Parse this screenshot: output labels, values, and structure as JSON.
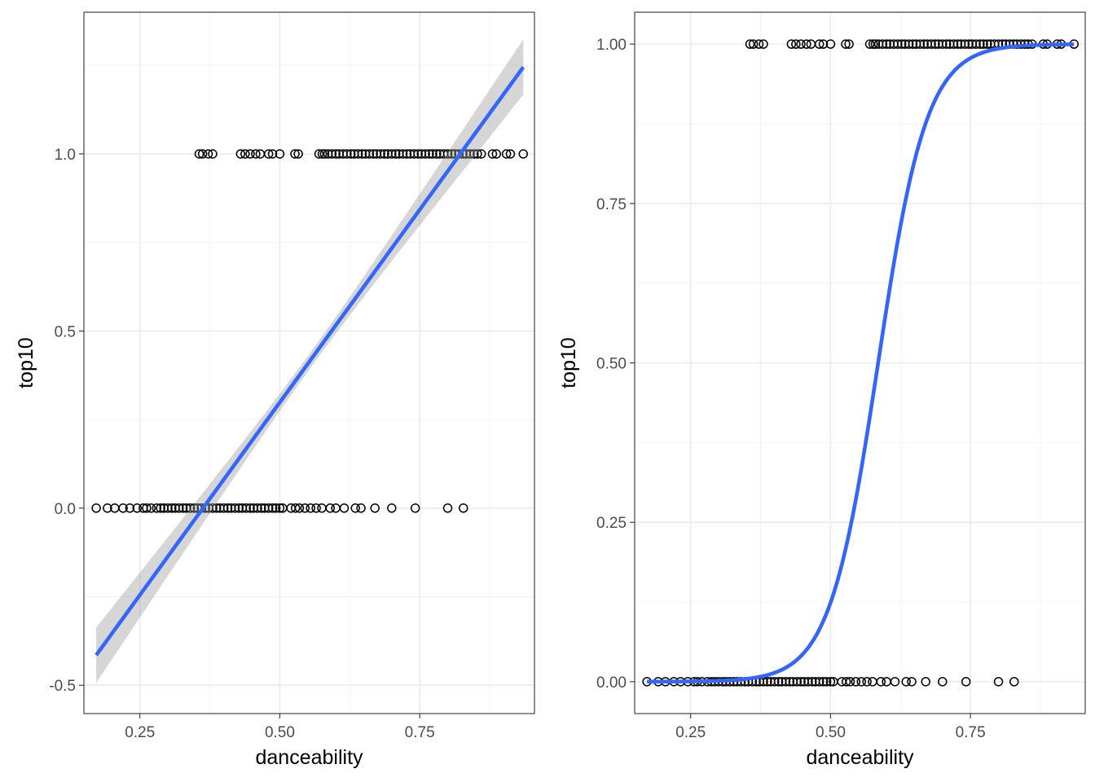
{
  "chart_data": [
    {
      "type": "scatter",
      "xlabel": "danceability",
      "ylabel": "top10",
      "xlim": [
        0.15,
        0.955
      ],
      "ylim": [
        -0.58,
        1.4
      ],
      "x_ticks": [
        0.25,
        0.5,
        0.75
      ],
      "x_tick_labels": [
        "0.25",
        "0.50",
        "0.75"
      ],
      "y_ticks": [
        -0.5,
        0.0,
        0.5,
        1.0
      ],
      "y_tick_labels": [
        "-0.5",
        "0.0",
        "0.5",
        "1.0"
      ],
      "grid": true,
      "colors": {
        "points": "#000000",
        "fit_line": "#3366ff",
        "confidence_band": "#999999"
      },
      "points": [
        {
          "y": 1,
          "x": [
            0.356,
            0.362,
            0.372,
            0.38,
            0.43,
            0.438,
            0.447,
            0.457,
            0.465,
            0.48,
            0.487,
            0.5,
            0.527,
            0.533,
            0.57,
            0.576,
            0.58,
            0.586,
            0.593,
            0.6,
            0.606,
            0.613,
            0.62,
            0.627,
            0.633,
            0.64,
            0.647,
            0.653,
            0.66,
            0.667,
            0.673,
            0.68,
            0.687,
            0.693,
            0.7,
            0.707,
            0.713,
            0.72,
            0.727,
            0.733,
            0.74,
            0.747,
            0.753,
            0.76,
            0.767,
            0.773,
            0.78,
            0.786,
            0.793,
            0.8,
            0.807,
            0.813,
            0.82,
            0.827,
            0.833,
            0.84,
            0.847,
            0.853,
            0.86,
            0.88,
            0.887,
            0.905,
            0.912,
            0.935
          ]
        },
        {
          "y": 0,
          "x": [
            0.172,
            0.192,
            0.205,
            0.22,
            0.232,
            0.245,
            0.256,
            0.262,
            0.27,
            0.28,
            0.287,
            0.293,
            0.3,
            0.307,
            0.313,
            0.32,
            0.327,
            0.333,
            0.34,
            0.347,
            0.353,
            0.36,
            0.367,
            0.373,
            0.38,
            0.387,
            0.393,
            0.4,
            0.407,
            0.413,
            0.42,
            0.427,
            0.433,
            0.44,
            0.447,
            0.453,
            0.46,
            0.467,
            0.473,
            0.48,
            0.487,
            0.493,
            0.5,
            0.505,
            0.52,
            0.528,
            0.535,
            0.545,
            0.555,
            0.565,
            0.575,
            0.59,
            0.6,
            0.615,
            0.635,
            0.645,
            0.67,
            0.7,
            0.742,
            0.8,
            0.828
          ]
        }
      ],
      "fit": {
        "method": "linear",
        "x_range": [
          0.172,
          0.935
        ],
        "y_range": [
          -0.415,
          1.245
        ],
        "ci_half_width_ends": 0.078,
        "ci_half_width_center": 0.022
      }
    },
    {
      "type": "scatter",
      "xlabel": "danceability",
      "ylabel": "top10",
      "xlim": [
        0.15,
        0.955
      ],
      "ylim": [
        -0.05,
        1.05
      ],
      "x_ticks": [
        0.25,
        0.5,
        0.75
      ],
      "x_tick_labels": [
        "0.25",
        "0.50",
        "0.75"
      ],
      "y_ticks": [
        0.0,
        0.25,
        0.5,
        0.75,
        1.0
      ],
      "y_tick_labels": [
        "0.00",
        "0.25",
        "0.50",
        "0.75",
        "1.00"
      ],
      "grid": true,
      "colors": {
        "points": "#000000",
        "fit_line": "#3366ff"
      },
      "points": [
        {
          "y": 1,
          "x": [
            0.356,
            0.362,
            0.372,
            0.38,
            0.43,
            0.438,
            0.447,
            0.457,
            0.465,
            0.48,
            0.487,
            0.5,
            0.527,
            0.533,
            0.57,
            0.576,
            0.58,
            0.586,
            0.593,
            0.6,
            0.606,
            0.613,
            0.62,
            0.627,
            0.633,
            0.64,
            0.647,
            0.653,
            0.66,
            0.667,
            0.673,
            0.68,
            0.687,
            0.693,
            0.7,
            0.707,
            0.713,
            0.72,
            0.727,
            0.733,
            0.74,
            0.747,
            0.753,
            0.76,
            0.767,
            0.773,
            0.78,
            0.786,
            0.793,
            0.8,
            0.807,
            0.813,
            0.82,
            0.827,
            0.833,
            0.84,
            0.847,
            0.853,
            0.86,
            0.88,
            0.887,
            0.905,
            0.912,
            0.935
          ]
        },
        {
          "y": 0,
          "x": [
            0.172,
            0.192,
            0.205,
            0.22,
            0.232,
            0.245,
            0.256,
            0.262,
            0.27,
            0.28,
            0.287,
            0.293,
            0.3,
            0.307,
            0.313,
            0.32,
            0.327,
            0.333,
            0.34,
            0.347,
            0.353,
            0.36,
            0.367,
            0.373,
            0.38,
            0.387,
            0.393,
            0.4,
            0.407,
            0.413,
            0.42,
            0.427,
            0.433,
            0.44,
            0.447,
            0.453,
            0.46,
            0.467,
            0.473,
            0.48,
            0.487,
            0.493,
            0.5,
            0.505,
            0.52,
            0.528,
            0.535,
            0.545,
            0.555,
            0.565,
            0.575,
            0.59,
            0.6,
            0.615,
            0.635,
            0.645,
            0.67,
            0.7,
            0.742,
            0.8,
            0.828
          ]
        }
      ],
      "fit": {
        "method": "logistic",
        "x_range": [
          0.172,
          0.935
        ],
        "midpoint": 0.585,
        "slope": 23
      }
    }
  ]
}
